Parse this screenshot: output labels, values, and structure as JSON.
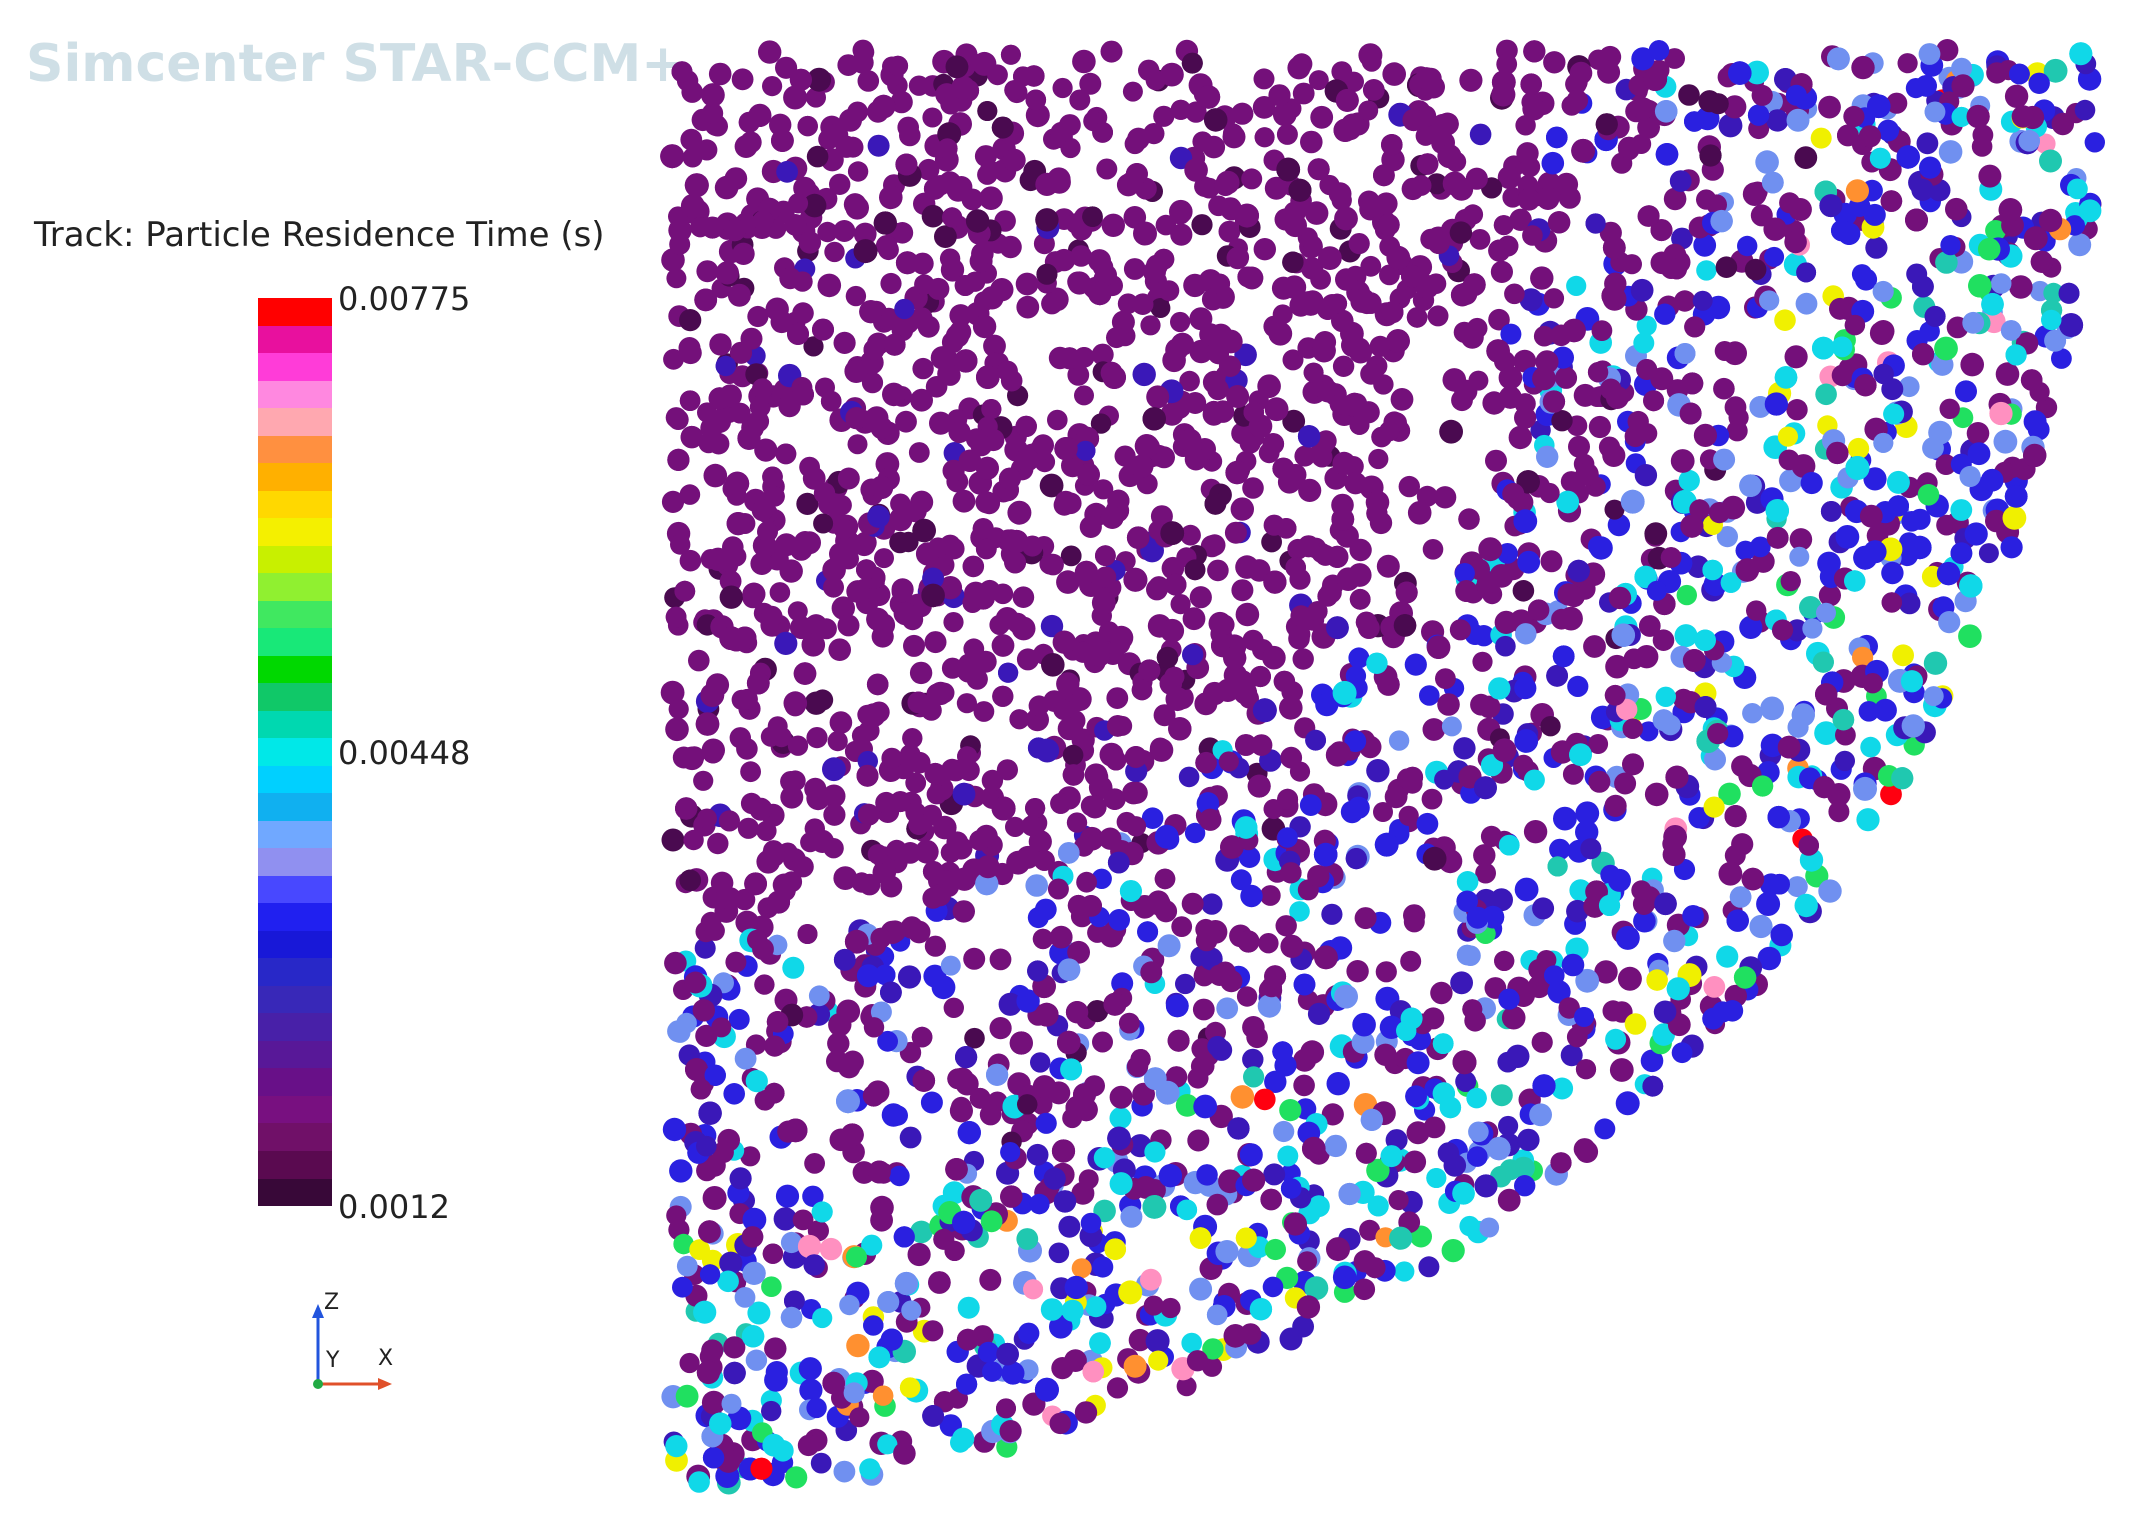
{
  "watermark": "Simcenter STAR-CCM+",
  "legend": {
    "title": "Track: Particle Residence Time (s)",
    "max_label": "0.00775",
    "mid_label": "0.00448",
    "min_label": "0.0012",
    "bands": [
      "#ff0000",
      "#e8109e",
      "#ff3cd8",
      "#ff88e0",
      "#ffa8b0",
      "#ff9040",
      "#ffb000",
      "#ffd800",
      "#f4f000",
      "#c8f000",
      "#90f030",
      "#40e860",
      "#18e878",
      "#00d800",
      "#10c868",
      "#00d8b0",
      "#00e8e8",
      "#00d0ff",
      "#10b0f0",
      "#70a8ff",
      "#9090f0",
      "#4848ff",
      "#2020f0",
      "#1818d8",
      "#2828c8",
      "#3828b8",
      "#4820a8",
      "#581898",
      "#681088",
      "#781080",
      "#701068",
      "#5a0a50",
      "#380838"
    ]
  },
  "axes": {
    "z_label": "Z",
    "y_label": "Y",
    "x_label": "X"
  },
  "particle_palette": {
    "dominant": "#74107a",
    "dark": "#4a0a50",
    "blue": "#2a20e0",
    "deep_blue": "#3a18b8",
    "light_blue": "#7090f0",
    "cyan": "#10d8e8",
    "teal": "#20c8b0",
    "green": "#20e060",
    "yellow": "#f0f000",
    "orange": "#ff9030",
    "pink": "#ff90c0",
    "red": "#ff0010"
  }
}
